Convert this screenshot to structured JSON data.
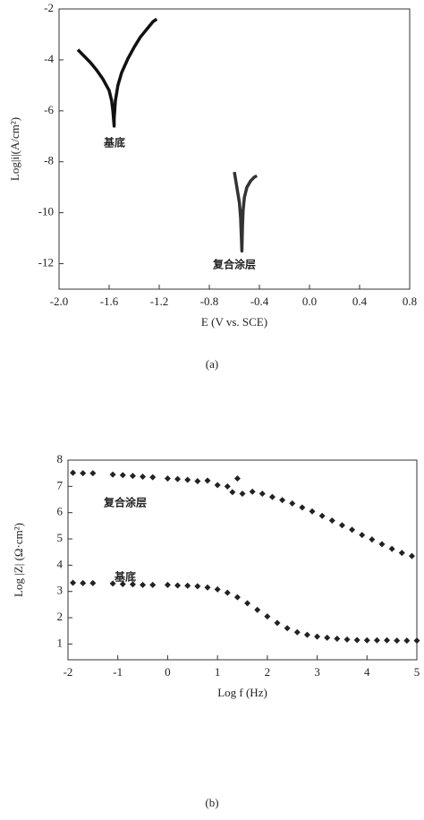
{
  "chart_data": [
    {
      "type": "line",
      "caption": "(a)",
      "x_label": "E (V vs. SCE)",
      "y_label": "Log|i|(A/cm²)",
      "xlim": [
        -2.0,
        0.8
      ],
      "ylim": [
        -13,
        -2
      ],
      "xticks": [
        {
          "value": -2.0,
          "label": "-2.0"
        },
        {
          "value": -1.6,
          "label": "-1.6"
        },
        {
          "value": -1.2,
          "label": "-1.2"
        },
        {
          "value": -0.8,
          "label": "-0.8"
        },
        {
          "value": -0.4,
          "label": "-0.4"
        },
        {
          "value": 0.0,
          "label": "0.0"
        },
        {
          "value": 0.4,
          "label": "0.4"
        },
        {
          "value": 0.8,
          "label": "0.8"
        }
      ],
      "yticks": [
        -2,
        -4,
        -6,
        -8,
        -10,
        -12
      ],
      "series": [
        {
          "name": "基底",
          "color": "#111111",
          "x": [
            -1.85,
            -1.8,
            -1.75,
            -1.7,
            -1.65,
            -1.6,
            -1.58,
            -1.57,
            -1.56,
            -1.56,
            -1.55,
            -1.53,
            -1.5,
            -1.45,
            -1.4,
            -1.35,
            -1.3,
            -1.25,
            -1.22
          ],
          "values": [
            -3.6,
            -3.85,
            -4.1,
            -4.4,
            -4.75,
            -5.2,
            -5.6,
            -6.0,
            -6.6,
            -6.3,
            -5.6,
            -5.0,
            -4.5,
            -3.95,
            -3.5,
            -3.1,
            -2.8,
            -2.5,
            -2.4
          ]
        },
        {
          "name": "复合涂层",
          "color": "#333333",
          "x": [
            -0.6,
            -0.58,
            -0.56,
            -0.55,
            -0.54,
            -0.535,
            -0.53,
            -0.52,
            -0.5,
            -0.47,
            -0.44,
            -0.42
          ],
          "values": [
            -8.4,
            -9.0,
            -9.6,
            -10.2,
            -11.5,
            -10.5,
            -9.9,
            -9.4,
            -9.0,
            -8.75,
            -8.6,
            -8.55
          ]
        }
      ]
    },
    {
      "type": "scatter",
      "caption": "(b)",
      "x_label": "Log f (Hz)",
      "y_label": "Log |Z| (Ω·cm²)",
      "xlim": [
        -2,
        5
      ],
      "ylim": [
        0.4,
        8
      ],
      "xticks": [
        -2,
        -1,
        0,
        1,
        2,
        3,
        4,
        5
      ],
      "yticks": [
        1,
        2,
        3,
        4,
        5,
        6,
        7,
        8
      ],
      "series": [
        {
          "name": "复合涂层",
          "color": "#222222",
          "x": [
            -1.9,
            -1.7,
            -1.5,
            -1.1,
            -0.9,
            -0.7,
            -0.5,
            -0.3,
            0,
            0.2,
            0.4,
            0.6,
            0.8,
            1.0,
            1.2,
            1.3,
            1.4,
            1.5,
            1.7,
            1.9,
            2.1,
            2.3,
            2.5,
            2.7,
            2.9,
            3.1,
            3.3,
            3.5,
            3.7,
            3.9,
            4.1,
            4.3,
            4.5,
            4.7,
            4.9
          ],
          "values": [
            7.52,
            7.5,
            7.5,
            7.45,
            7.43,
            7.4,
            7.37,
            7.35,
            7.3,
            7.28,
            7.25,
            7.2,
            7.22,
            7.05,
            7.0,
            6.78,
            7.3,
            6.72,
            6.8,
            6.72,
            6.6,
            6.48,
            6.35,
            6.2,
            6.05,
            5.88,
            5.7,
            5.52,
            5.35,
            5.15,
            4.98,
            4.8,
            4.62,
            4.47,
            4.35
          ]
        },
        {
          "name": "基底",
          "color": "#222222",
          "x": [
            -1.9,
            -1.7,
            -1.5,
            -1.1,
            -0.9,
            -0.7,
            -0.5,
            -0.3,
            0,
            0.2,
            0.4,
            0.6,
            0.8,
            1.0,
            1.2,
            1.4,
            1.6,
            1.8,
            2.0,
            2.2,
            2.4,
            2.6,
            2.8,
            3.0,
            3.2,
            3.4,
            3.6,
            3.8,
            4.0,
            4.2,
            4.4,
            4.6,
            4.8,
            5.0
          ],
          "values": [
            3.33,
            3.32,
            3.32,
            3.3,
            3.28,
            3.27,
            3.25,
            3.25,
            3.25,
            3.23,
            3.22,
            3.2,
            3.15,
            3.08,
            2.95,
            2.78,
            2.55,
            2.3,
            2.05,
            1.8,
            1.6,
            1.45,
            1.35,
            1.28,
            1.24,
            1.2,
            1.17,
            1.15,
            1.14,
            1.14,
            1.14,
            1.13,
            1.13,
            1.13
          ]
        }
      ]
    }
  ]
}
